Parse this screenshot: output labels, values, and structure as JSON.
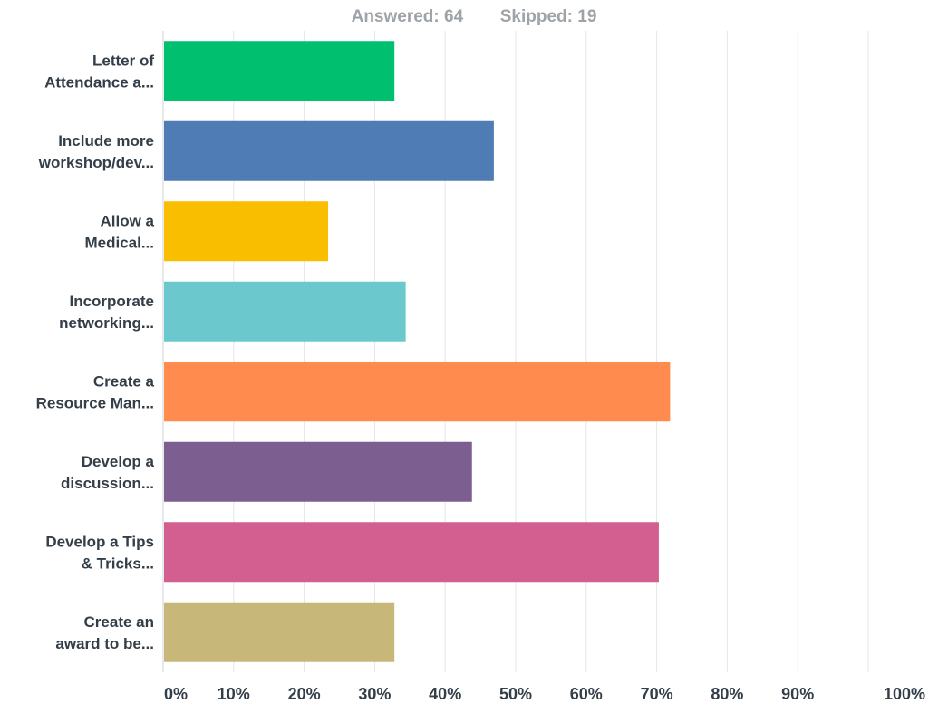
{
  "header": {
    "answered_label": "Answered:",
    "answered_value": "64",
    "skipped_label": "Skipped:",
    "skipped_value": "19"
  },
  "chart_data": {
    "type": "bar",
    "orientation": "horizontal",
    "categories": [
      [
        "Letter of",
        "Attendance a..."
      ],
      [
        "Include more",
        "workshop/dev..."
      ],
      [
        "Allow a",
        "Medical..."
      ],
      [
        "Incorporate",
        "networking..."
      ],
      [
        "Create a",
        "Resource Man..."
      ],
      [
        "Develop a",
        "discussion..."
      ],
      [
        "Develop a Tips",
        "& Tricks..."
      ],
      [
        "Create an",
        "award to be..."
      ]
    ],
    "values": [
      32.8,
      46.9,
      23.4,
      34.4,
      71.9,
      43.8,
      70.3,
      32.8
    ],
    "colors": [
      "#00bf6f",
      "#507cb6",
      "#f9be00",
      "#6bc8cd",
      "#ff8b4f",
      "#7d5e90",
      "#d25f90",
      "#c7b879"
    ],
    "x_ticks": [
      "0%",
      "10%",
      "20%",
      "30%",
      "40%",
      "50%",
      "60%",
      "70%",
      "80%",
      "90%",
      "100%"
    ],
    "xlim": [
      0,
      100
    ],
    "grid": true,
    "legend": false,
    "title": "",
    "xlabel": "",
    "ylabel": ""
  }
}
